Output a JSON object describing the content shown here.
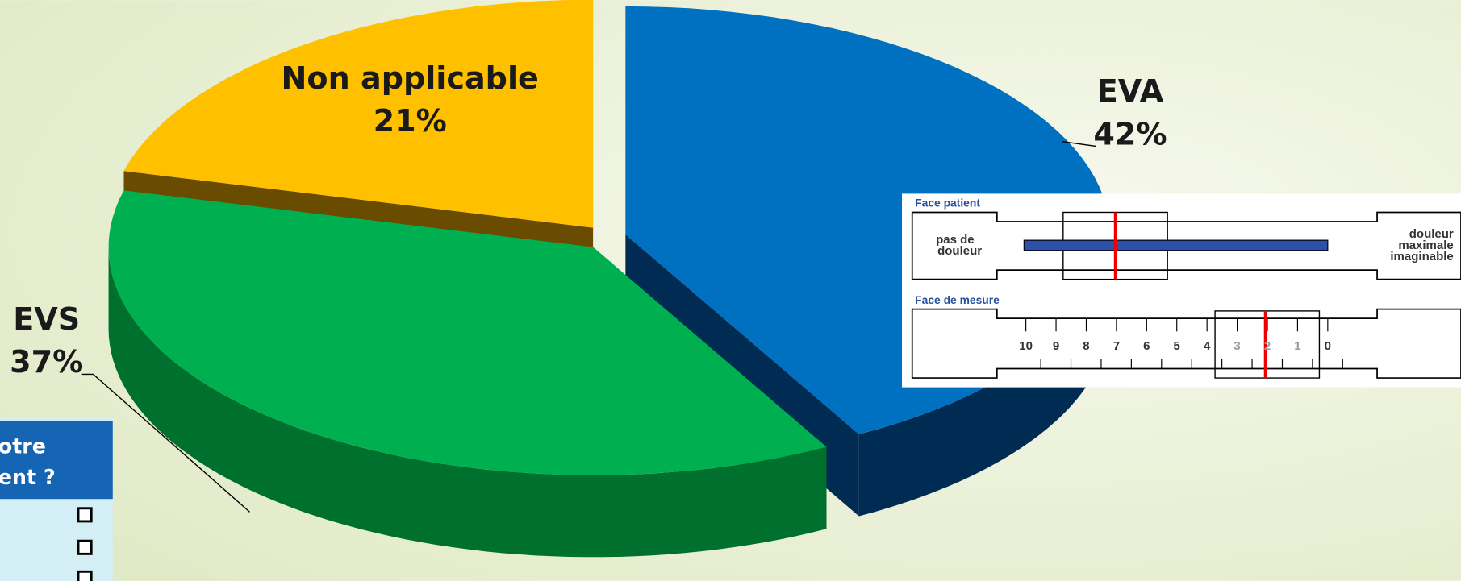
{
  "chart_data": {
    "type": "pie",
    "categories": [
      "EVA",
      "EVS",
      "Non applicable"
    ],
    "values": [
      42,
      37,
      21
    ],
    "value_labels": [
      "42%",
      "37%",
      "21%"
    ],
    "colors": [
      "#0070c0",
      "#00b050",
      "#ffc000"
    ],
    "side_colors": [
      "#002b52",
      "#00702f",
      "#6a4c00"
    ]
  },
  "inset": {
    "face_patient": "Face patient",
    "left_label": [
      "pas de",
      "douleur"
    ],
    "right_label": [
      "douleur",
      "maximale",
      "imaginable"
    ],
    "face_mesure": "Face de mesure",
    "scale": [
      10,
      9,
      8,
      7,
      6,
      5,
      4,
      3,
      2,
      1,
      0
    ]
  },
  "side_panel": {
    "lines": [
      "otre",
      "ent ?"
    ]
  }
}
